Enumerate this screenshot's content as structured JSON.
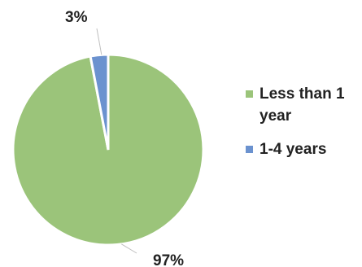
{
  "chart_data": {
    "type": "pie",
    "categories": [
      "Less than 1 year",
      "1-4 years"
    ],
    "values": [
      97,
      3
    ],
    "data_labels": [
      "97%",
      "3%"
    ],
    "colors": [
      "#9bc47a",
      "#6b92cf"
    ],
    "legend_position": "right"
  }
}
